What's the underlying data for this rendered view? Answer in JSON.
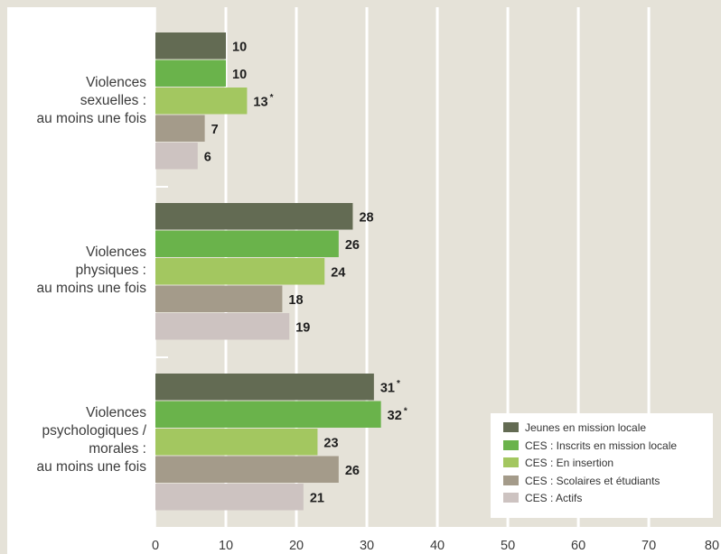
{
  "chart_data": {
    "type": "bar",
    "orientation": "horizontal",
    "categories": [
      [
        "Violences",
        "sexuelles :",
        "au moins une fois"
      ],
      [
        "Violences",
        "physiques :",
        "au moins une fois"
      ],
      [
        "Violences",
        "psychologiques /",
        "morales :",
        "au moins une fois"
      ]
    ],
    "series": [
      {
        "name": "Jeunes en mission locale",
        "color": "#636b53",
        "values": [
          10,
          28,
          31
        ],
        "stars": [
          false,
          false,
          true
        ]
      },
      {
        "name": "CES : Inscrits en mission locale",
        "color": "#6ab34b",
        "values": [
          10,
          26,
          32
        ],
        "stars": [
          false,
          false,
          true
        ]
      },
      {
        "name": "CES : En insertion",
        "color": "#a3c760",
        "values": [
          13,
          24,
          23
        ],
        "stars": [
          true,
          false,
          false
        ]
      },
      {
        "name": "CES : Scolaires et étudiants",
        "color": "#a49b8a",
        "values": [
          7,
          18,
          26
        ],
        "stars": [
          false,
          false,
          false
        ]
      },
      {
        "name": "CES : Actifs",
        "color": "#cdc3c1",
        "values": [
          6,
          19,
          21
        ],
        "stars": [
          false,
          false,
          false
        ]
      }
    ],
    "xlim": [
      0,
      80
    ],
    "xticks": [
      "0",
      "10",
      "20",
      "30",
      "40",
      "50",
      "60",
      "70",
      "80"
    ],
    "star_mark": "*",
    "grid": true,
    "legend_position": "bottom-right",
    "colors": {
      "plot_bg": "#e5e2d8",
      "grid": "#ffffff"
    }
  }
}
